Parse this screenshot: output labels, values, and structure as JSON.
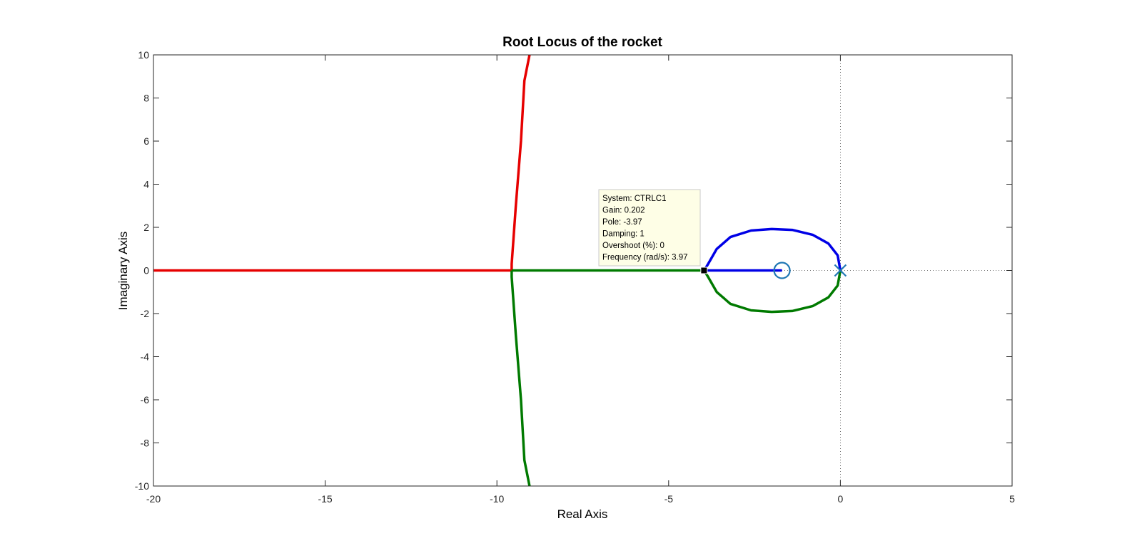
{
  "chart_data": {
    "type": "line",
    "title": "Root Locus of the rocket",
    "xlabel": "Real Axis",
    "ylabel": "Imaginary Axis",
    "xlim": [
      -20,
      5
    ],
    "ylim": [
      -10,
      10
    ],
    "xticks": [
      -20,
      -15,
      -10,
      -5,
      0,
      5
    ],
    "yticks": [
      -10,
      -8,
      -6,
      -4,
      -2,
      0,
      2,
      4,
      6,
      8,
      10
    ],
    "grid": false,
    "reference_lines": [
      {
        "orientation": "horizontal",
        "value": 0,
        "style": "dotted"
      },
      {
        "orientation": "vertical",
        "value": 0,
        "style": "dotted"
      }
    ],
    "series": [
      {
        "color": "#e60000",
        "points": [
          [
            -20,
            0
          ],
          [
            -9.57,
            0
          ],
          [
            -9.57,
            0.3
          ],
          [
            -9.45,
            3.0
          ],
          [
            -9.3,
            6.0
          ],
          [
            -9.2,
            8.8
          ],
          [
            -9.05,
            10
          ]
        ]
      },
      {
        "color": "#007a00",
        "points": [
          [
            -9.57,
            0
          ],
          [
            -3.97,
            0
          ],
          [
            -3.85,
            -0.3
          ],
          [
            -3.6,
            -1.0
          ],
          [
            -3.2,
            -1.55
          ],
          [
            -2.6,
            -1.85
          ],
          [
            -2.0,
            -1.92
          ],
          [
            -1.4,
            -1.88
          ],
          [
            -0.8,
            -1.65
          ],
          [
            -0.35,
            -1.25
          ],
          [
            -0.08,
            -0.7
          ],
          [
            0,
            0
          ]
        ]
      },
      {
        "color": "#007a00",
        "points": [
          [
            -9.57,
            0
          ],
          [
            -9.57,
            -0.3
          ],
          [
            -9.45,
            -3.0
          ],
          [
            -9.3,
            -6.0
          ],
          [
            -9.2,
            -8.8
          ],
          [
            -9.05,
            -10
          ]
        ]
      },
      {
        "color": "#0000e6",
        "points": [
          [
            -1.7,
            0
          ],
          [
            -3.97,
            0
          ],
          [
            -3.85,
            0.3
          ],
          [
            -3.6,
            1.0
          ],
          [
            -3.2,
            1.55
          ],
          [
            -2.6,
            1.85
          ],
          [
            -2.0,
            1.92
          ],
          [
            -1.4,
            1.88
          ],
          [
            -0.8,
            1.65
          ],
          [
            -0.35,
            1.25
          ],
          [
            -0.08,
            0.7
          ],
          [
            0,
            0
          ]
        ]
      }
    ],
    "zeros": [
      [
        -1.7,
        0
      ]
    ],
    "poles": [
      [
        0,
        0
      ]
    ],
    "marker_color": "#1f77b4",
    "datatip": {
      "point": [
        -3.97,
        0
      ],
      "lines": [
        "System: CTRLC1",
        "Gain: 0.202",
        "Pole: -3.97",
        "Damping: 1",
        "Overshoot (%): 0",
        "Frequency (rad/s): 3.97"
      ]
    }
  }
}
